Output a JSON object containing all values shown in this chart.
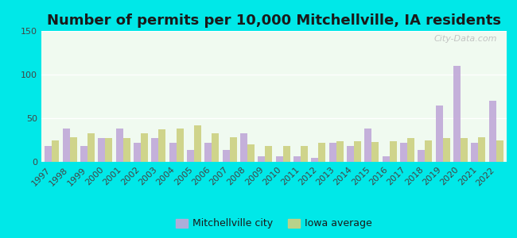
{
  "title": "Number of permits per 10,000 Mitchellville, IA residents",
  "years": [
    1997,
    1998,
    1999,
    2000,
    2001,
    2002,
    2003,
    2004,
    2005,
    2006,
    2007,
    2008,
    2009,
    2010,
    2011,
    2012,
    2013,
    2014,
    2015,
    2016,
    2017,
    2018,
    2019,
    2020,
    2021,
    2022
  ],
  "mitchellville": [
    18,
    38,
    18,
    27,
    38,
    22,
    27,
    22,
    14,
    22,
    14,
    33,
    6,
    6,
    6,
    5,
    22,
    18,
    38,
    6,
    22,
    14,
    65,
    110,
    22,
    70
  ],
  "iowa_avg": [
    25,
    28,
    33,
    27,
    27,
    33,
    37,
    38,
    42,
    33,
    28,
    20,
    18,
    18,
    18,
    22,
    24,
    24,
    23,
    24,
    27,
    25,
    27,
    27,
    28,
    25
  ],
  "city_color": "#c0a8d8",
  "iowa_color": "#ccd080",
  "background_outer": "#00e8e8",
  "background_plot": "#f0faf0",
  "ylim": [
    0,
    150
  ],
  "yticks": [
    0,
    50,
    100,
    150
  ],
  "title_fontsize": 13,
  "tick_fontsize": 8,
  "legend_city": "Mitchellville city",
  "legend_iowa": "Iowa average",
  "watermark": "City-Data.com"
}
